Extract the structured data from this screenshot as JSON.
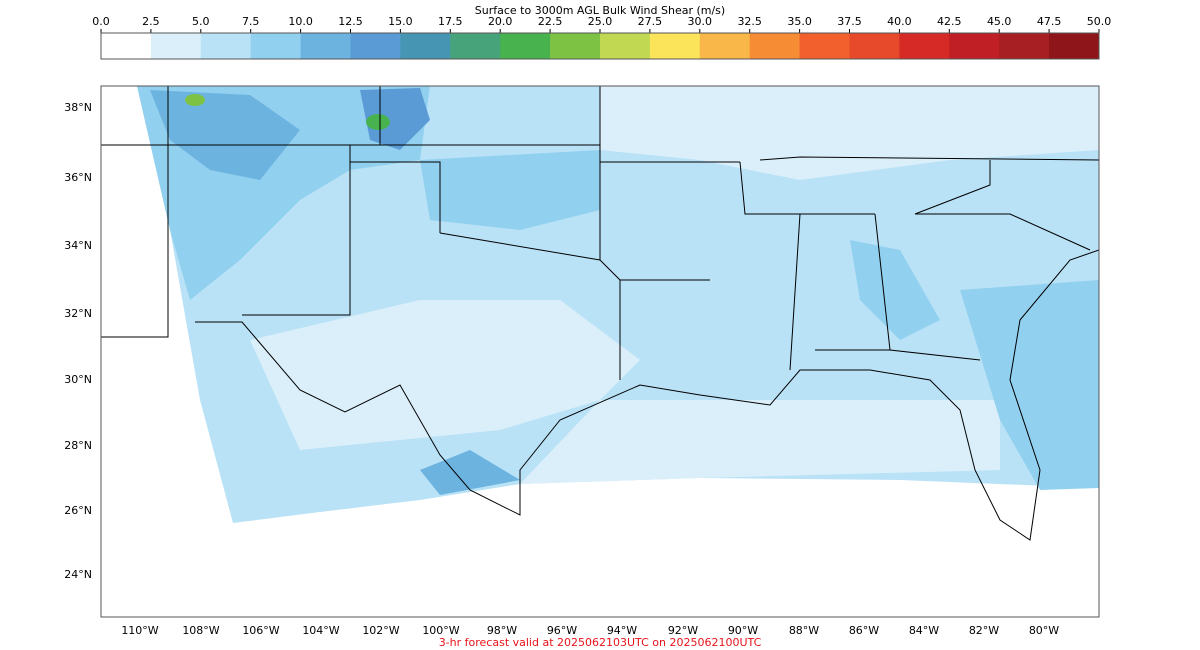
{
  "colorbar": {
    "title": "Surface to 3000m AGL Bulk Wind Shear (m/s)",
    "ticks": [
      "0.0",
      "2.5",
      "5.0",
      "7.5",
      "10.0",
      "12.5",
      "15.0",
      "17.5",
      "20.0",
      "22.5",
      "25.0",
      "27.5",
      "30.0",
      "32.5",
      "35.0",
      "37.5",
      "40.0",
      "42.5",
      "45.0",
      "47.5",
      "50.0"
    ],
    "colors": [
      "#ffffff",
      "#dbeffb",
      "#b9e2f6",
      "#92d0f0",
      "#6cb3e0",
      "#5a9bd5",
      "#4695b3",
      "#46a37a",
      "#48b24e",
      "#7dc243",
      "#c1d853",
      "#fbe35a",
      "#f8b748",
      "#f68c34",
      "#f2612d",
      "#e64a2b",
      "#d62a27",
      "#c01f26",
      "#a71e23",
      "#8e161a"
    ]
  },
  "map": {
    "lat_labels": [
      "38°N",
      "36°N",
      "34°N",
      "32°N",
      "30°N",
      "28°N",
      "26°N",
      "24°N"
    ],
    "lon_labels": [
      "110°W",
      "108°W",
      "106°W",
      "104°W",
      "102°W",
      "100°W",
      "98°W",
      "96°W",
      "94°W",
      "92°W",
      "90°W",
      "88°W",
      "86°W",
      "84°W",
      "82°W",
      "80°W"
    ]
  },
  "footer": "3-hr forecast valid at 2025062103UTC on 2025062100UTC"
}
